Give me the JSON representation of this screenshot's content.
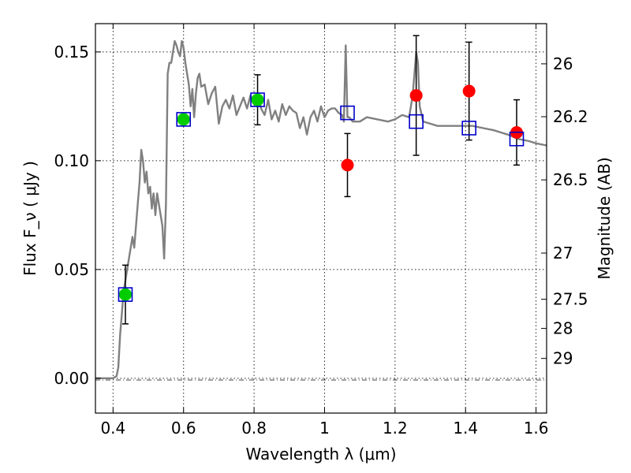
{
  "chart_data": {
    "type": "scatter",
    "xlabel": "Wavelength  λ (μm)",
    "ylabel": "Flux  F_ν  ( μJy )",
    "y2label": "Magnitude (AB)",
    "xlim": [
      0.35,
      1.63
    ],
    "ylim": [
      -0.016,
      0.163
    ],
    "grid": true,
    "x_ticks": [
      {
        "value": 0.4,
        "label": "0.4"
      },
      {
        "value": 0.6,
        "label": "0.6"
      },
      {
        "value": 0.8,
        "label": "0.8"
      },
      {
        "value": 1.0,
        "label": "1"
      },
      {
        "value": 1.2,
        "label": "1.2"
      },
      {
        "value": 1.4,
        "label": "1.4"
      },
      {
        "value": 1.6,
        "label": "1.6"
      }
    ],
    "y_ticks": [
      {
        "value": 0.0,
        "label": "0.00"
      },
      {
        "value": 0.05,
        "label": "0.05"
      },
      {
        "value": 0.1,
        "label": "0.10"
      },
      {
        "value": 0.15,
        "label": "0.15"
      }
    ],
    "y2_ticks": [
      {
        "value": 26.0,
        "label": "26"
      },
      {
        "value": 26.2,
        "label": "26.2"
      },
      {
        "value": 26.5,
        "label": "26.5"
      },
      {
        "value": 27.0,
        "label": "27"
      },
      {
        "value": 27.5,
        "label": "27.5"
      },
      {
        "value": 28.0,
        "label": "28"
      },
      {
        "value": 29.0,
        "label": "29"
      }
    ],
    "series": [
      {
        "kind": "line",
        "color": "#808080",
        "x": [
          0.35,
          0.4,
          0.41,
          0.415,
          0.42,
          0.43,
          0.44,
          0.45,
          0.455,
          0.46,
          0.47,
          0.475,
          0.48,
          0.485,
          0.49,
          0.495,
          0.5,
          0.505,
          0.51,
          0.515,
          0.52,
          0.525,
          0.53,
          0.535,
          0.54,
          0.545,
          0.55,
          0.555,
          0.56,
          0.565,
          0.57,
          0.575,
          0.58,
          0.585,
          0.59,
          0.595,
          0.6,
          0.605,
          0.61,
          0.615,
          0.62,
          0.625,
          0.63,
          0.635,
          0.64,
          0.645,
          0.65,
          0.66,
          0.67,
          0.68,
          0.69,
          0.7,
          0.71,
          0.72,
          0.73,
          0.74,
          0.75,
          0.76,
          0.77,
          0.78,
          0.79,
          0.8,
          0.81,
          0.82,
          0.83,
          0.84,
          0.85,
          0.86,
          0.87,
          0.88,
          0.89,
          0.9,
          0.91,
          0.92,
          0.93,
          0.94,
          0.95,
          0.96,
          0.97,
          0.98,
          0.99,
          1.0,
          1.01,
          1.02,
          1.03,
          1.04,
          1.05,
          1.055,
          1.06,
          1.065,
          1.07,
          1.08,
          1.1,
          1.12,
          1.15,
          1.18,
          1.2,
          1.22,
          1.24,
          1.25,
          1.26,
          1.265,
          1.27,
          1.28,
          1.3,
          1.32,
          1.35,
          1.38,
          1.4,
          1.42,
          1.45,
          1.48,
          1.5,
          1.52,
          1.55,
          1.58,
          1.6,
          1.63
        ],
        "y": [
          0.0,
          0.0,
          0.001,
          0.005,
          0.02,
          0.04,
          0.05,
          0.06,
          0.065,
          0.06,
          0.08,
          0.09,
          0.105,
          0.1,
          0.09,
          0.095,
          0.085,
          0.088,
          0.078,
          0.085,
          0.075,
          0.085,
          0.08,
          0.075,
          0.07,
          0.055,
          0.08,
          0.14,
          0.145,
          0.145,
          0.15,
          0.155,
          0.153,
          0.15,
          0.148,
          0.155,
          0.152,
          0.145,
          0.14,
          0.135,
          0.125,
          0.133,
          0.12,
          0.131,
          0.138,
          0.14,
          0.134,
          0.135,
          0.126,
          0.131,
          0.134,
          0.117,
          0.125,
          0.128,
          0.124,
          0.13,
          0.121,
          0.125,
          0.129,
          0.124,
          0.13,
          0.126,
          0.131,
          0.124,
          0.121,
          0.128,
          0.119,
          0.123,
          0.118,
          0.126,
          0.121,
          0.125,
          0.123,
          0.122,
          0.115,
          0.12,
          0.112,
          0.12,
          0.123,
          0.118,
          0.125,
          0.12,
          0.123,
          0.124,
          0.124,
          0.122,
          0.121,
          0.118,
          0.153,
          0.12,
          0.12,
          0.118,
          0.118,
          0.12,
          0.119,
          0.118,
          0.119,
          0.121,
          0.12,
          0.13,
          0.15,
          0.145,
          0.125,
          0.118,
          0.117,
          0.116,
          0.116,
          0.116,
          0.116,
          0.116,
          0.115,
          0.114,
          0.113,
          0.112,
          0.11,
          0.109,
          0.108,
          0.107
        ]
      },
      {
        "kind": "open-square",
        "color": "#0000cc",
        "x": [
          0.435,
          0.6,
          0.81,
          1.065,
          1.26,
          1.41,
          1.545
        ],
        "y": [
          0.0385,
          0.119,
          0.128,
          0.122,
          0.118,
          0.115,
          0.11
        ]
      },
      {
        "kind": "filled-circle",
        "color": "#00cc00",
        "x": [
          0.435,
          0.6,
          0.81
        ],
        "y": [
          0.0385,
          0.119,
          0.128
        ],
        "yerr": [
          0.0135,
          0.0,
          0.0115
        ]
      },
      {
        "kind": "filled-circle",
        "color": "#ff0000",
        "x": [
          1.065,
          1.26,
          1.41,
          1.545
        ],
        "y": [
          0.098,
          0.13,
          0.132,
          0.113
        ],
        "yerr": [
          0.0145,
          0.0275,
          0.0225,
          0.015
        ]
      }
    ]
  }
}
